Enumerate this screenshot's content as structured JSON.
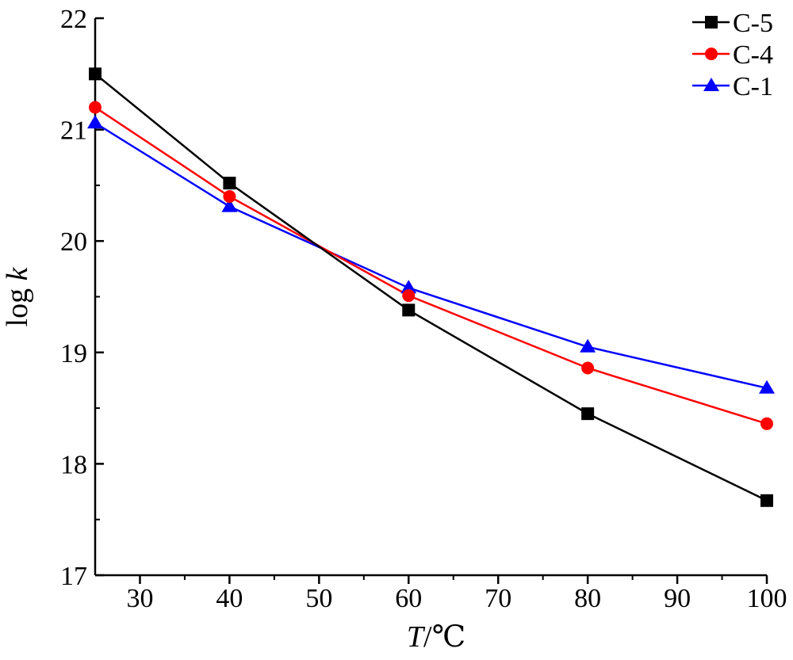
{
  "chart_data": {
    "type": "line",
    "xlabel": "T/℃",
    "xlabel_var": "T",
    "xlabel_unit": "/℃",
    "ylabel": "log k",
    "ylabel_prefix": "log ",
    "ylabel_var": "k",
    "xlim": [
      25,
      100
    ],
    "ylim": [
      17,
      22
    ],
    "xticks": [
      30,
      40,
      50,
      60,
      70,
      80,
      90,
      100
    ],
    "yticks": [
      17,
      18,
      19,
      20,
      21,
      22
    ],
    "grid": false,
    "legend_position": "top-right",
    "series": [
      {
        "name": "C-5",
        "color": "#000000",
        "marker": "square",
        "x": [
          25,
          40,
          60,
          80,
          100
        ],
        "y": [
          21.5,
          20.52,
          19.38,
          18.45,
          17.67
        ]
      },
      {
        "name": "C-4",
        "color": "#ff0000",
        "marker": "circle",
        "x": [
          25,
          40,
          60,
          80,
          100
        ],
        "y": [
          21.2,
          20.4,
          19.51,
          18.86,
          18.36
        ]
      },
      {
        "name": "C-1",
        "color": "#0000ff",
        "marker": "triangle",
        "x": [
          25,
          40,
          60,
          80,
          100
        ],
        "y": [
          21.06,
          20.31,
          19.58,
          19.05,
          18.68
        ]
      }
    ]
  }
}
